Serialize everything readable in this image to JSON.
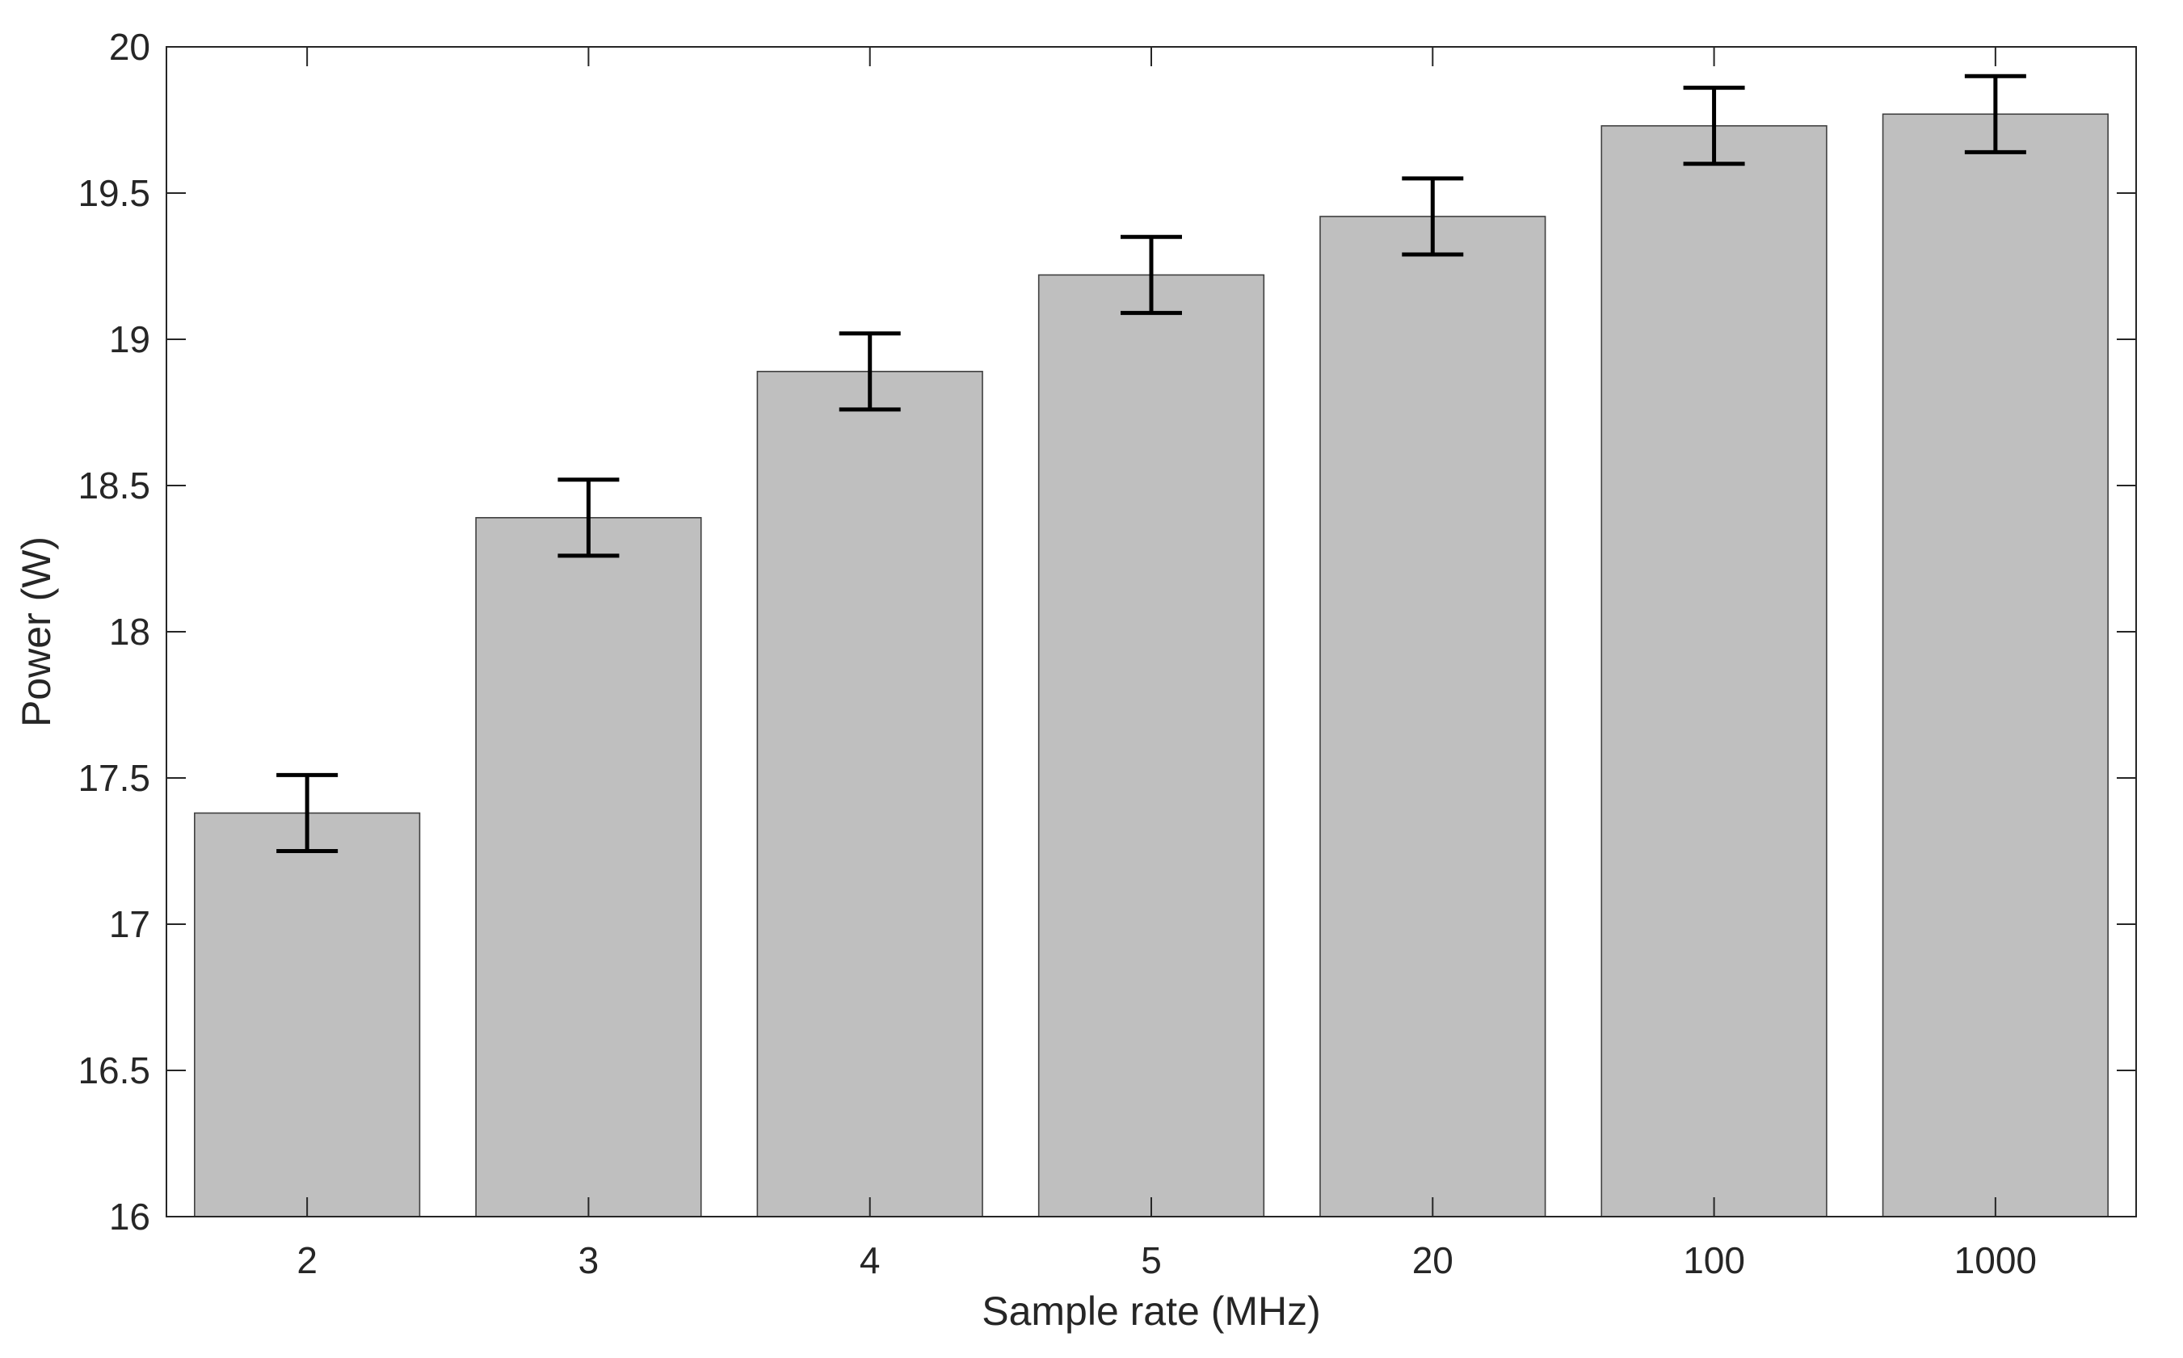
{
  "chart_data": {
    "type": "bar",
    "title": "",
    "xlabel": "Sample rate (MHz)",
    "ylabel": "Power (W)",
    "categories": [
      "2",
      "3",
      "4",
      "5",
      "20",
      "100",
      "1000"
    ],
    "values": [
      17.38,
      18.39,
      18.89,
      19.22,
      19.42,
      19.73,
      19.77
    ],
    "error": [
      0.13,
      0.13,
      0.13,
      0.13,
      0.13,
      0.13,
      0.13
    ],
    "ylim": [
      16,
      20
    ],
    "yticks": [
      "16",
      "16.5",
      "17",
      "17.5",
      "18",
      "18.5",
      "19",
      "19.5",
      "20"
    ],
    "grid": false,
    "legend": false,
    "colors": {
      "bar_fill": "#bfbfbf",
      "bar_edge": "#404040",
      "error_bar": "#000000",
      "axis": "#262626"
    }
  }
}
